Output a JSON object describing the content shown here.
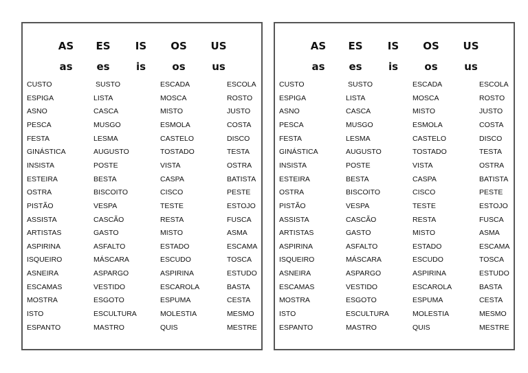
{
  "headers_upper": [
    "AS",
    "ES",
    "IS",
    "OS",
    "US"
  ],
  "headers_lower": [
    "as",
    "es",
    "is",
    "os",
    "us"
  ],
  "columns": [
    [
      "CUSTO",
      "ESPIGA",
      "ASNO",
      "PESCA",
      "FESTA",
      "GINÁSTICA",
      "INSISTA",
      "ESTEIRA",
      "OSTRA",
      "PISTÃO",
      "ASSISTA",
      "ARTISTAS",
      "ASPIRINA",
      "ISQUEIRO",
      "ASNEIRA",
      "ESCAMAS",
      "MOSTRA",
      "ISTO",
      "ESPANTO"
    ],
    [
      "SUSTO",
      "LISTA",
      "CASCA",
      "MUSGO",
      "LESMA",
      "AUGUSTO",
      "POSTE",
      "BESTA",
      "BISCOITO",
      "VESPA",
      "CASCÃO",
      "GASTO",
      "ASFALTO",
      "MÁSCARA",
      "ASPARGO",
      "VESTIDO",
      "ESGOTO",
      "ESCULTURA",
      "MASTRO"
    ],
    [
      "ESCADA",
      "MOSCA",
      "MISTO",
      "ESMOLA",
      "CASTELO",
      "TOSTADO",
      "VISTA",
      "CASPA",
      "CISCO",
      "TESTE",
      "RESTA",
      "MISTO",
      "ESTADO",
      "ESCUDO",
      "ASPIRINA",
      "ESCAROLA",
      "ESPUMA",
      "MOLESTIA",
      "QUIS"
    ],
    [
      "ESCOLA",
      "ROSTO",
      "JUSTO",
      "COSTA",
      "DISCO",
      "TESTA",
      "OSTRA",
      "BATISTA",
      "PESTE",
      "ESTOJO",
      "FUSCA",
      "ASMA",
      "ESCAMA",
      "TOSCA",
      "ESTUDO",
      "BASTA",
      "CESTA",
      "MESMO",
      "MESTRE"
    ]
  ]
}
